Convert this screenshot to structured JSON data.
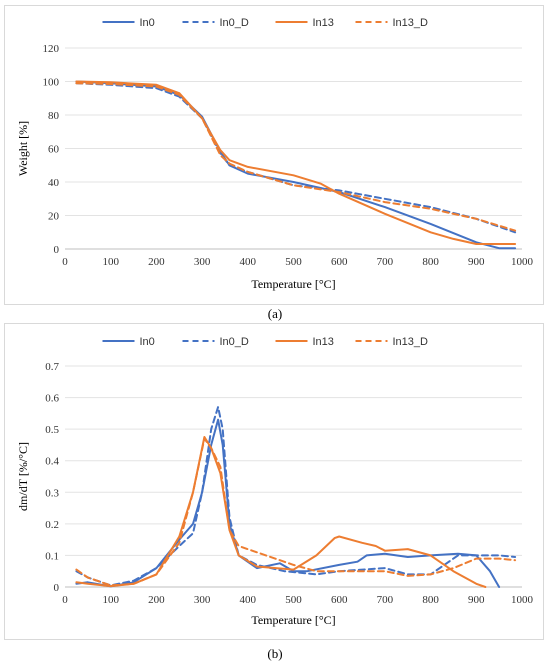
{
  "captions": {
    "a": "(a)",
    "b": "(b)"
  },
  "colors": {
    "blue": "#4472C4",
    "orange": "#ED7D31"
  },
  "chart_data": [
    {
      "type": "line",
      "panel": "a",
      "xlabel": "Temperature [°C]",
      "ylabel": "Weight [%]",
      "xlim": [
        0,
        1000
      ],
      "ylim": [
        0,
        120
      ],
      "xticks": [
        0,
        100,
        200,
        300,
        400,
        500,
        600,
        700,
        800,
        900,
        1000
      ],
      "yticks": [
        0,
        20,
        40,
        60,
        80,
        100,
        120
      ],
      "ytick_labels": [
        "0",
        "20",
        "40",
        "60",
        "80",
        "100",
        "120"
      ],
      "grid": "horizontal",
      "legend": "top-center",
      "series": [
        {
          "name": "In0",
          "color": "#4472C4",
          "dash": "solid",
          "points": [
            [
              25,
              100
            ],
            [
              100,
              99
            ],
            [
              200,
              97
            ],
            [
              250,
              92
            ],
            [
              300,
              79
            ],
            [
              340,
              58
            ],
            [
              360,
              50
            ],
            [
              400,
              45
            ],
            [
              500,
              40
            ],
            [
              600,
              34
            ],
            [
              700,
              25
            ],
            [
              800,
              15
            ],
            [
              900,
              4
            ],
            [
              950,
              0.5
            ],
            [
              985,
              0.5
            ]
          ]
        },
        {
          "name": "In0_D",
          "color": "#4472C4",
          "dash": "dashed",
          "points": [
            [
              25,
              99
            ],
            [
              100,
              98
            ],
            [
              200,
              96
            ],
            [
              250,
              91
            ],
            [
              300,
              78
            ],
            [
              340,
              57
            ],
            [
              360,
              50
            ],
            [
              400,
              46
            ],
            [
              500,
              38
            ],
            [
              600,
              35
            ],
            [
              700,
              30
            ],
            [
              800,
              25
            ],
            [
              900,
              18
            ],
            [
              985,
              10
            ]
          ]
        },
        {
          "name": "In13",
          "color": "#ED7D31",
          "dash": "solid",
          "points": [
            [
              25,
              100
            ],
            [
              100,
              99.5
            ],
            [
              200,
              98
            ],
            [
              250,
              93
            ],
            [
              300,
              78
            ],
            [
              340,
              59
            ],
            [
              360,
              53
            ],
            [
              400,
              49
            ],
            [
              500,
              44
            ],
            [
              560,
              39
            ],
            [
              600,
              33
            ],
            [
              700,
              21
            ],
            [
              800,
              10
            ],
            [
              850,
              6
            ],
            [
              900,
              3
            ],
            [
              985,
              3
            ]
          ]
        },
        {
          "name": "In13_D",
          "color": "#ED7D31",
          "dash": "dashed",
          "points": [
            [
              25,
              99
            ],
            [
              100,
              98.5
            ],
            [
              200,
              97
            ],
            [
              250,
              92
            ],
            [
              300,
              78
            ],
            [
              340,
              56
            ],
            [
              360,
              51
            ],
            [
              400,
              46
            ],
            [
              500,
              38
            ],
            [
              600,
              34
            ],
            [
              700,
              28
            ],
            [
              800,
              24
            ],
            [
              900,
              18
            ],
            [
              985,
              11
            ]
          ]
        }
      ]
    },
    {
      "type": "line",
      "panel": "b",
      "xlabel": "Temperature [°C]",
      "ylabel": "dm/dT [%/°C]",
      "xlim": [
        0,
        1000
      ],
      "ylim": [
        0,
        0.7
      ],
      "xticks": [
        0,
        100,
        200,
        300,
        400,
        500,
        600,
        700,
        800,
        900,
        1000
      ],
      "yticks": [
        0,
        0.1,
        0.2,
        0.3,
        0.4,
        0.5,
        0.6,
        0.7
      ],
      "ytick_labels": [
        "0",
        "0.1",
        "0.2",
        "0.3",
        "0.4",
        "0.5",
        "0.6",
        "0.7"
      ],
      "grid": "horizontal",
      "legend": "top-center",
      "series": [
        {
          "name": "In0",
          "color": "#4472C4",
          "dash": "solid",
          "points": [
            [
              25,
              0.01
            ],
            [
              50,
              0.015
            ],
            [
              100,
              0.002
            ],
            [
              150,
              0.015
            ],
            [
              200,
              0.06
            ],
            [
              250,
              0.15
            ],
            [
              280,
              0.2
            ],
            [
              300,
              0.3
            ],
            [
              320,
              0.45
            ],
            [
              335,
              0.53
            ],
            [
              345,
              0.45
            ],
            [
              360,
              0.2
            ],
            [
              380,
              0.1
            ],
            [
              420,
              0.06
            ],
            [
              470,
              0.075
            ],
            [
              500,
              0.05
            ],
            [
              530,
              0.05
            ],
            [
              600,
              0.07
            ],
            [
              640,
              0.08
            ],
            [
              660,
              0.1
            ],
            [
              700,
              0.105
            ],
            [
              750,
              0.095
            ],
            [
              800,
              0.1
            ],
            [
              860,
              0.105
            ],
            [
              900,
              0.1
            ],
            [
              930,
              0.05
            ],
            [
              950,
              0.0
            ]
          ]
        },
        {
          "name": "In0_D",
          "color": "#4472C4",
          "dash": "dashed",
          "points": [
            [
              25,
              0.05
            ],
            [
              50,
              0.03
            ],
            [
              100,
              0.005
            ],
            [
              150,
              0.02
            ],
            [
              200,
              0.06
            ],
            [
              250,
              0.13
            ],
            [
              280,
              0.17
            ],
            [
              300,
              0.3
            ],
            [
              320,
              0.5
            ],
            [
              335,
              0.57
            ],
            [
              345,
              0.5
            ],
            [
              360,
              0.22
            ],
            [
              380,
              0.1
            ],
            [
              420,
              0.07
            ],
            [
              480,
              0.05
            ],
            [
              550,
              0.04
            ],
            [
              600,
              0.05
            ],
            [
              700,
              0.06
            ],
            [
              750,
              0.04
            ],
            [
              800,
              0.04
            ],
            [
              860,
              0.1
            ],
            [
              900,
              0.1
            ],
            [
              950,
              0.1
            ],
            [
              985,
              0.095
            ]
          ]
        },
        {
          "name": "In13",
          "color": "#ED7D31",
          "dash": "solid",
          "points": [
            [
              25,
              0.015
            ],
            [
              50,
              0.01
            ],
            [
              100,
              0.003
            ],
            [
              150,
              0.01
            ],
            [
              200,
              0.04
            ],
            [
              250,
              0.16
            ],
            [
              280,
              0.3
            ],
            [
              305,
              0.475
            ],
            [
              320,
              0.44
            ],
            [
              340,
              0.36
            ],
            [
              360,
              0.18
            ],
            [
              380,
              0.1
            ],
            [
              420,
              0.065
            ],
            [
              500,
              0.055
            ],
            [
              550,
              0.1
            ],
            [
              590,
              0.155
            ],
            [
              600,
              0.16
            ],
            [
              650,
              0.14
            ],
            [
              680,
              0.13
            ],
            [
              700,
              0.115
            ],
            [
              750,
              0.12
            ],
            [
              800,
              0.1
            ],
            [
              850,
              0.05
            ],
            [
              900,
              0.01
            ],
            [
              920,
              0.0
            ]
          ]
        },
        {
          "name": "In13_D",
          "color": "#ED7D31",
          "dash": "dashed",
          "points": [
            [
              25,
              0.055
            ],
            [
              50,
              0.03
            ],
            [
              100,
              0.005
            ],
            [
              150,
              0.01
            ],
            [
              200,
              0.04
            ],
            [
              250,
              0.14
            ],
            [
              280,
              0.3
            ],
            [
              305,
              0.47
            ],
            [
              320,
              0.44
            ],
            [
              340,
              0.38
            ],
            [
              360,
              0.18
            ],
            [
              380,
              0.13
            ],
            [
              420,
              0.11
            ],
            [
              500,
              0.07
            ],
            [
              550,
              0.05
            ],
            [
              600,
              0.05
            ],
            [
              700,
              0.05
            ],
            [
              750,
              0.035
            ],
            [
              800,
              0.04
            ],
            [
              850,
              0.06
            ],
            [
              900,
              0.09
            ],
            [
              950,
              0.09
            ],
            [
              985,
              0.085
            ]
          ]
        }
      ]
    }
  ]
}
